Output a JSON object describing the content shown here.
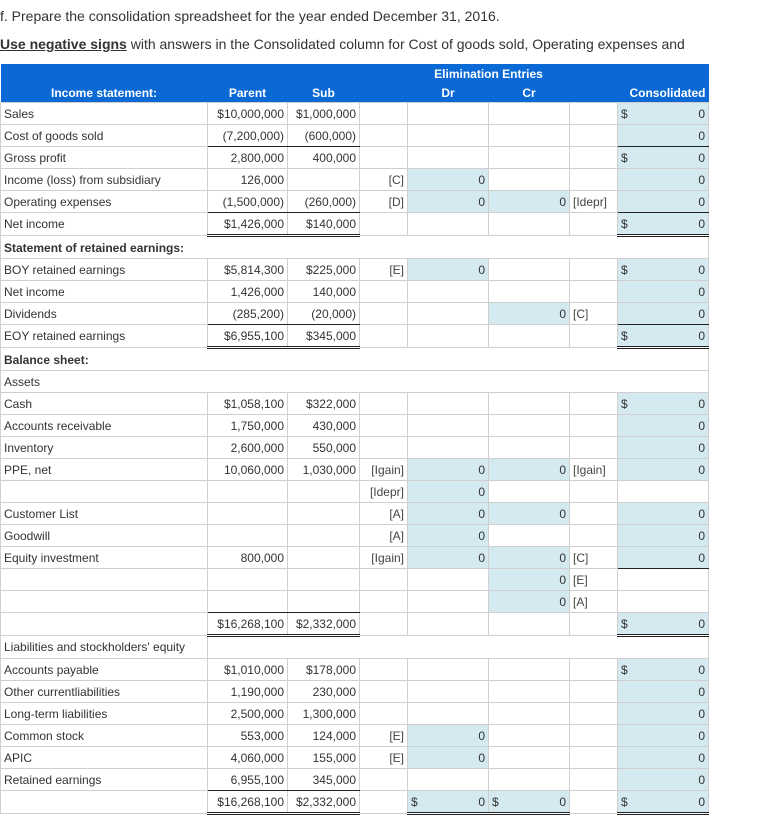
{
  "instructions": {
    "line1": "f. Prepare the consolidation spreadsheet for the year ended December 31, 2016.",
    "line2_emphasis": "Use negative signs",
    "line2_rest": " with answers in the Consolidated column for Cost of goods sold, Operating expenses and"
  },
  "colors": {
    "header_bg": "#0b69d6",
    "input_bg": "#d5e9f0"
  },
  "header": {
    "group": "Elimination Entries",
    "section": "Income statement:",
    "parent": "Parent",
    "sub": "Sub",
    "dr": "Dr",
    "cr": "Cr",
    "consolidated": "Consolidated"
  },
  "rows": [
    {
      "label": "Sales",
      "parent": "$10,000,000",
      "sub": "$1,000,000",
      "consol": "0",
      "consol_dollar": true
    },
    {
      "label": "Cost of goods sold",
      "parent": "(7,200,000)",
      "sub": "(600,000)",
      "consol": "0"
    },
    {
      "label": "Gross profit",
      "parent": "2,800,000",
      "sub": "400,000",
      "consol": "0",
      "consol_dollar": true
    },
    {
      "label": "Income (loss) from subsidiary",
      "parent": "126,000",
      "sub": "",
      "dr_code": "[C]",
      "dr": "0",
      "consol": "0"
    },
    {
      "label": "Operating expenses",
      "parent": "(1,500,000)",
      "sub": "(260,000)",
      "dr_code": "[D]",
      "dr": "0",
      "cr": "0",
      "cr_code": "[Idepr]",
      "consol": "0"
    },
    {
      "label": "Net income",
      "parent": "$1,426,000",
      "sub": "$140,000",
      "consol": "0",
      "consol_dollar": true
    },
    {
      "heading": "Statement of retained earnings:",
      "bold": true
    },
    {
      "label": "BOY retained earnings",
      "parent": "$5,814,300",
      "sub": "$225,000",
      "dr_code": "[E]",
      "dr": "0",
      "consol": "0",
      "consol_dollar": true
    },
    {
      "label": "Net income",
      "parent": "1,426,000",
      "sub": "140,000",
      "consol": "0"
    },
    {
      "label": "Dividends",
      "parent": "(285,200)",
      "sub": "(20,000)",
      "cr": "0",
      "cr_code": "[C]",
      "consol": "0"
    },
    {
      "label": "EOY retained earnings",
      "parent": "$6,955,100",
      "sub": "$345,000",
      "consol": "0",
      "consol_dollar": true
    },
    {
      "heading": "Balance sheet:",
      "bold": true
    },
    {
      "heading": "Assets"
    },
    {
      "label": "Cash",
      "parent": "$1,058,100",
      "sub": "$322,000",
      "consol": "0",
      "consol_dollar": true
    },
    {
      "label": "Accounts receivable",
      "parent": "1,750,000",
      "sub": "430,000",
      "consol": "0"
    },
    {
      "label": "Inventory",
      "parent": "2,600,000",
      "sub": "550,000",
      "consol": "0"
    },
    {
      "label": "PPE, net",
      "parent": "10,060,000",
      "sub": "1,030,000",
      "dr_code": "[Igain]",
      "dr": "0",
      "cr": "0",
      "cr_code": "[Igain]",
      "consol": "0"
    },
    {
      "label": "",
      "dr_code": "[Idepr]",
      "dr": "0"
    },
    {
      "label": "Customer List",
      "dr_code": "[A]",
      "dr": "0",
      "cr": "0",
      "consol": "0"
    },
    {
      "label": "Goodwill",
      "dr_code": "[A]",
      "dr": "0",
      "consol": "0"
    },
    {
      "label": "Equity investment",
      "parent": "800,000",
      "dr_code": "[Igain]",
      "dr": "0",
      "cr": "0",
      "cr_code": "[C]",
      "consol": "0"
    },
    {
      "label": "",
      "cr": "0",
      "cr_code": "[E]"
    },
    {
      "label": "",
      "cr": "0",
      "cr_code": "[A]"
    },
    {
      "label": "",
      "parent": "$16,268,100",
      "sub": "$2,332,000",
      "consol": "0",
      "consol_dollar": true
    },
    {
      "heading": "Liabilities and stockholders' equity",
      "label_only": true
    },
    {
      "label": "Accounts payable",
      "parent": "$1,010,000",
      "sub": "$178,000",
      "consol": "0",
      "consol_dollar": true
    },
    {
      "label": "Other currentliabilities",
      "parent": "1,190,000",
      "sub": "230,000",
      "consol": "0"
    },
    {
      "label": "Long-term liabilities",
      "parent": "2,500,000",
      "sub": "1,300,000",
      "consol": "0"
    },
    {
      "label": "Common stock",
      "parent": "553,000",
      "sub": "124,000",
      "dr_code": "[E]",
      "dr": "0",
      "consol": "0"
    },
    {
      "label": "APIC",
      "parent": "4,060,000",
      "sub": "155,000",
      "dr_code": "[E]",
      "dr": "0",
      "consol": "0"
    },
    {
      "label": "Retained earnings",
      "parent": "6,955,100",
      "sub": "345,000",
      "consol": "0"
    },
    {
      "label": "",
      "parent": "$16,268,100",
      "sub": "$2,332,000",
      "dr": "0",
      "dr_dollar": true,
      "cr": "0",
      "cr_dollar": true,
      "consol": "0",
      "consol_dollar": true
    }
  ]
}
